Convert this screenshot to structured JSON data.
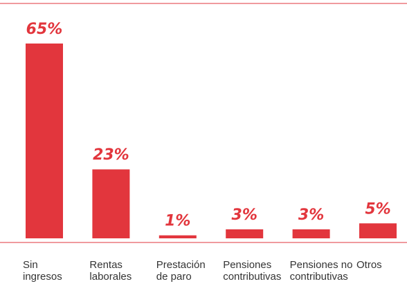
{
  "chart_data": {
    "type": "bar",
    "categories": [
      "Sin\ningresos",
      "Rentas\nlaborales",
      "Prestación\nde paro",
      "Pensiones\ncontributivas",
      "Pensiones no\ncontributivas",
      "Otros"
    ],
    "values": [
      65,
      23,
      1,
      3,
      3,
      5
    ],
    "value_labels": [
      "65%",
      "23%",
      "1%",
      "3%",
      "3%",
      "5%"
    ],
    "color": "#e2363d"
  }
}
